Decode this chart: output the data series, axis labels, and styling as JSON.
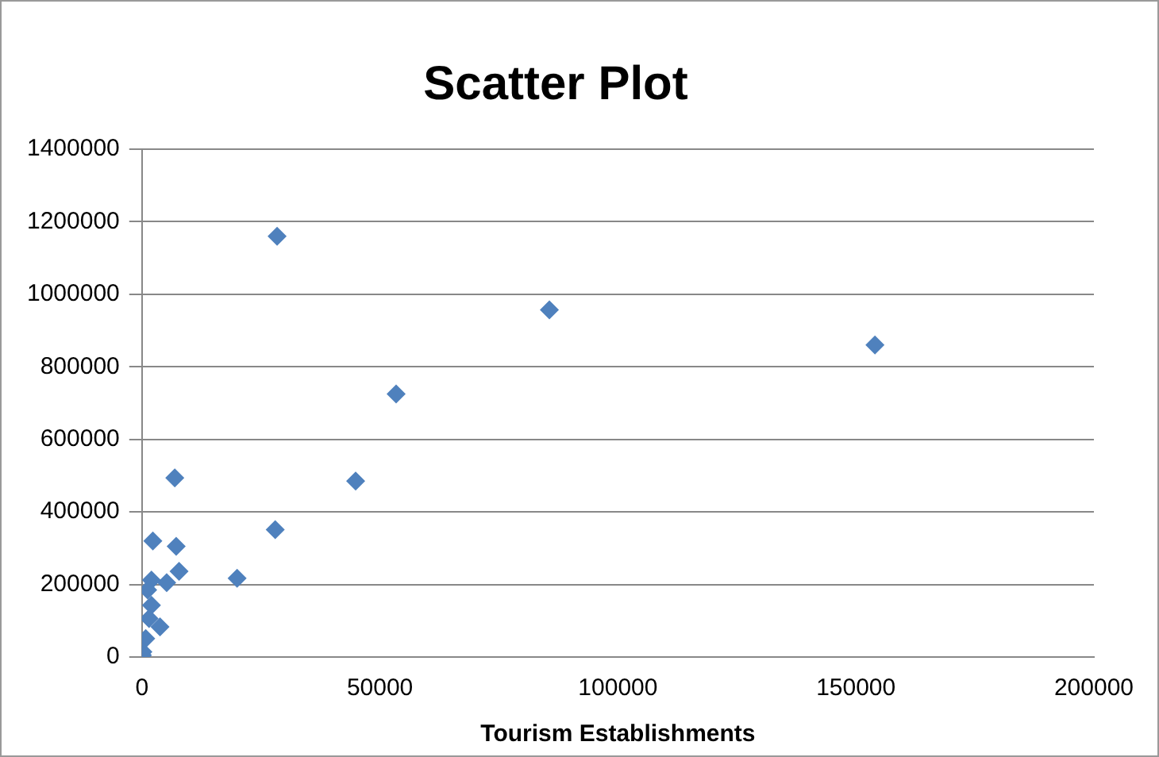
{
  "chart_data": {
    "type": "scatter",
    "title": "Scatter Plot",
    "xlabel": "Tourism Establishments",
    "x": [
      28400,
      85600,
      154000,
      53400,
      44900,
      28000,
      20000,
      6900,
      2300,
      7200,
      7800,
      5200,
      2000,
      1200,
      2000,
      1500,
      3800,
      800,
      200,
      100
    ],
    "series": [
      {
        "color": "#4f81bd",
        "values": [
          1160000,
          957000,
          860000,
          725000,
          485000,
          351000,
          217000,
          494000,
          320000,
          305000,
          236000,
          205000,
          212000,
          185000,
          143000,
          106000,
          83000,
          51000,
          14000,
          5000
        ]
      }
    ],
    "xlim": [
      0,
      200000
    ],
    "xticks": [
      0,
      50000,
      100000,
      150000,
      200000
    ],
    "ylim": [
      0,
      1400000
    ],
    "yticks": [
      0,
      200000,
      400000,
      600000,
      800000,
      1000000,
      1200000,
      1400000
    ],
    "grid": "y",
    "legend": false,
    "marker": "diamond"
  }
}
